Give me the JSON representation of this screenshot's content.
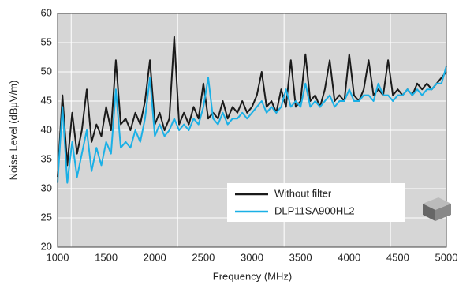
{
  "chart_data": {
    "type": "line",
    "xlabel": "Frequency (MHz)",
    "ylabel": "Noise Level (dBμV/m)",
    "x": [
      1000,
      1050,
      1100,
      1150,
      1200,
      1250,
      1300,
      1350,
      1400,
      1450,
      1500,
      1550,
      1600,
      1650,
      1700,
      1750,
      1800,
      1850,
      1900,
      1950,
      2000,
      2050,
      2100,
      2150,
      2200,
      2250,
      2300,
      2350,
      2400,
      2450,
      2500,
      2550,
      2600,
      2650,
      2700,
      2750,
      2800,
      2850,
      2900,
      2950,
      3000,
      3050,
      3100,
      3150,
      3200,
      3250,
      3300,
      3350,
      3400,
      3450,
      3500,
      3550,
      3600,
      3650,
      3700,
      3750,
      3800,
      3850,
      3900,
      3950,
      4000,
      4050,
      4100,
      4150,
      4200,
      4250,
      4300,
      4350,
      4400,
      4450,
      4500,
      4550,
      4600,
      4650,
      4700,
      4750,
      4800,
      4850,
      4900,
      4950,
      5000
    ],
    "series": [
      {
        "name": "Without filter",
        "color": "#1a1a1a",
        "values": [
          32,
          46,
          34,
          43,
          36,
          40,
          47,
          38,
          41,
          39,
          44,
          40,
          52,
          41,
          42,
          40,
          43,
          41,
          45,
          52,
          41,
          43,
          40,
          42,
          56,
          41,
          43,
          41,
          44,
          42,
          48,
          42,
          43,
          42,
          45,
          42,
          44,
          43,
          45,
          43,
          44,
          46,
          50,
          44,
          45,
          43,
          47,
          44,
          52,
          44,
          45,
          53,
          45,
          46,
          44,
          47,
          52,
          45,
          46,
          45,
          53,
          46,
          45,
          47,
          52,
          46,
          47,
          46,
          52,
          46,
          47,
          46,
          47,
          46,
          48,
          47,
          48,
          47,
          48,
          49,
          50
        ]
      },
      {
        "name": "DLP11SA900HL2",
        "color": "#1ab0e6",
        "values": [
          31,
          44,
          31,
          38,
          32,
          36,
          40,
          33,
          37,
          34,
          38,
          36,
          47,
          37,
          38,
          37,
          40,
          38,
          42,
          49,
          39,
          41,
          39,
          40,
          42,
          40,
          41,
          40,
          42,
          41,
          44,
          49,
          42,
          41,
          43,
          41,
          42,
          42,
          43,
          42,
          43,
          44,
          45,
          43,
          44,
          43,
          44,
          47,
          44,
          45,
          44,
          48,
          44,
          45,
          44,
          45,
          46,
          44,
          45,
          45,
          47,
          45,
          45,
          46,
          46,
          45,
          48,
          46,
          46,
          45,
          46,
          46,
          47,
          46,
          47,
          46,
          47,
          47,
          48,
          48,
          51
        ]
      }
    ],
    "xlim": [
      1000,
      5000
    ],
    "ylim": [
      20,
      60
    ],
    "xticks": [
      1000,
      1500,
      2000,
      2500,
      3000,
      3500,
      4000,
      4500,
      5000
    ],
    "yticks": [
      20,
      25,
      30,
      35,
      40,
      45,
      50,
      55,
      60
    ],
    "xgrid": [
      1140,
      2235,
      3330,
      4425
    ],
    "grid": true,
    "legend": "lower right"
  }
}
